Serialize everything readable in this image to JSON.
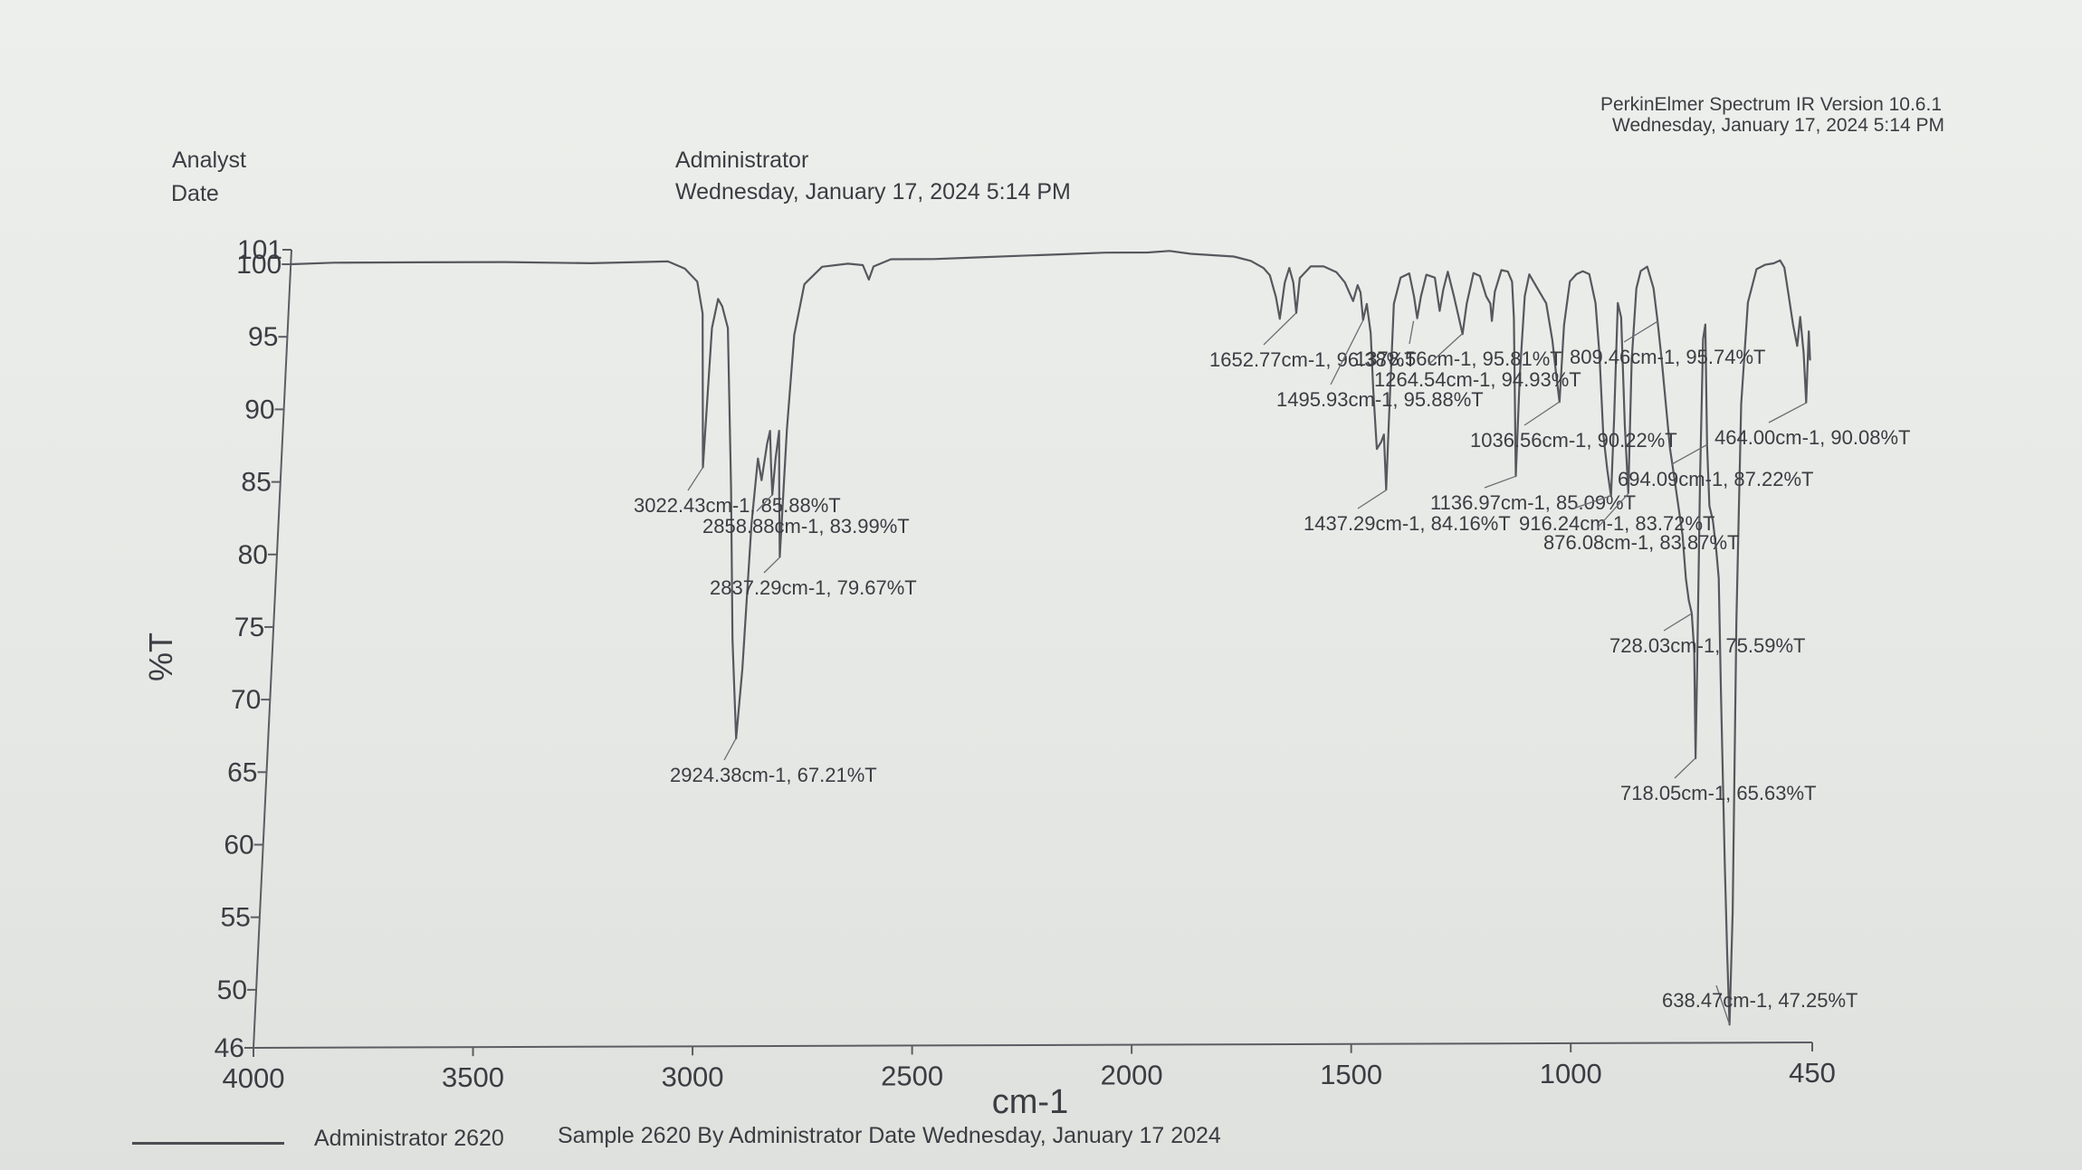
{
  "header": {
    "analyst_label": "Analyst",
    "date_label": "Date",
    "analyst_value": "Administrator",
    "date_value": "Wednesday, January 17, 2024 5:14 PM",
    "software": "PerkinElmer Spectrum IR Version 10.6.1",
    "software_date": "Wednesday, January 17, 2024 5:14 PM"
  },
  "legend": {
    "name": "Administrator 2620",
    "description": "Sample 2620 By Administrator Date Wednesday, January 17 2024"
  },
  "chart_data": {
    "type": "line",
    "title": "",
    "xlabel": "cm-1",
    "ylabel": "%T",
    "xlim": [
      4000,
      450
    ],
    "ylim": [
      46,
      101
    ],
    "x_reversed": true,
    "x_ticks": [
      4000,
      3500,
      3000,
      2500,
      2000,
      1500,
      1000,
      450
    ],
    "y_ticks": [
      46,
      50,
      55,
      60,
      65,
      70,
      75,
      80,
      85,
      90,
      95,
      100,
      101
    ],
    "grid": false,
    "series": [
      {
        "name": "Administrator 2620",
        "color": "#55585d",
        "points": [
          [
            4000,
            100
          ],
          [
            3900,
            100.1
          ],
          [
            3700,
            100.1
          ],
          [
            3500,
            100.1
          ],
          [
            3300,
            100.0
          ],
          [
            3120,
            100.1
          ],
          [
            3080,
            99.6
          ],
          [
            3050,
            98.7
          ],
          [
            3035,
            96.5
          ],
          [
            3022,
            85.9
          ],
          [
            3012,
            95.5
          ],
          [
            3000,
            97.5
          ],
          [
            2990,
            97.0
          ],
          [
            2975,
            95.5
          ],
          [
            2955,
            84.5
          ],
          [
            2940,
            74.0
          ],
          [
            2924,
            67.2
          ],
          [
            2915,
            72.0
          ],
          [
            2905,
            82.0
          ],
          [
            2895,
            86.5
          ],
          [
            2885,
            85.0
          ],
          [
            2875,
            87.5
          ],
          [
            2869,
            88.4
          ],
          [
            2864,
            86.0
          ],
          [
            2859,
            84.0
          ],
          [
            2854,
            86.5
          ],
          [
            2848,
            88.4
          ],
          [
            2843,
            84.0
          ],
          [
            2837,
            79.7
          ],
          [
            2830,
            88.5
          ],
          [
            2820,
            95.0
          ],
          [
            2800,
            98.5
          ],
          [
            2760,
            99.7
          ],
          [
            2700,
            99.9
          ],
          [
            2665,
            99.8
          ],
          [
            2650,
            98.8
          ],
          [
            2640,
            99.7
          ],
          [
            2600,
            100.2
          ],
          [
            2500,
            100.2
          ],
          [
            2400,
            100.3
          ],
          [
            2300,
            100.4
          ],
          [
            2200,
            100.5
          ],
          [
            2100,
            100.6
          ],
          [
            2000,
            100.6
          ],
          [
            1950,
            100.7
          ],
          [
            1900,
            100.5
          ],
          [
            1850,
            100.4
          ],
          [
            1800,
            100.3
          ],
          [
            1760,
            100.0
          ],
          [
            1730,
            99.5
          ],
          [
            1715,
            99.0
          ],
          [
            1700,
            97.5
          ],
          [
            1690,
            96.0
          ],
          [
            1680,
            98.5
          ],
          [
            1670,
            99.5
          ],
          [
            1660,
            98.5
          ],
          [
            1652,
            96.4
          ],
          [
            1645,
            98.8
          ],
          [
            1620,
            99.6
          ],
          [
            1590,
            99.6
          ],
          [
            1560,
            99.2
          ],
          [
            1540,
            98.5
          ],
          [
            1520,
            97.2
          ],
          [
            1510,
            98.3
          ],
          [
            1503,
            97.8
          ],
          [
            1496,
            95.9
          ],
          [
            1488,
            97.0
          ],
          [
            1478,
            95.0
          ],
          [
            1470,
            91.0
          ],
          [
            1460,
            87.0
          ],
          [
            1450,
            87.5
          ],
          [
            1444,
            88.0
          ],
          [
            1437,
            84.2
          ],
          [
            1432,
            90.0
          ],
          [
            1425,
            97.0
          ],
          [
            1410,
            98.8
          ],
          [
            1390,
            99.1
          ],
          [
            1378,
            97.5
          ],
          [
            1370,
            96.0
          ],
          [
            1362,
            97.5
          ],
          [
            1350,
            99.0
          ],
          [
            1330,
            98.8
          ],
          [
            1318,
            96.5
          ],
          [
            1310,
            98.0
          ],
          [
            1300,
            99.2
          ],
          [
            1285,
            97.5
          ],
          [
            1264,
            94.9
          ],
          [
            1255,
            97.0
          ],
          [
            1240,
            99.1
          ],
          [
            1225,
            98.9
          ],
          [
            1210,
            97.5
          ],
          [
            1200,
            97.0
          ],
          [
            1196,
            95.8
          ],
          [
            1190,
            97.8
          ],
          [
            1175,
            99.3
          ],
          [
            1160,
            99.2
          ],
          [
            1150,
            98.5
          ],
          [
            1145,
            96.0
          ],
          [
            1137,
            85.1
          ],
          [
            1130,
            92.0
          ],
          [
            1120,
            97.5
          ],
          [
            1110,
            99.0
          ],
          [
            1090,
            98.0
          ],
          [
            1070,
            97.0
          ],
          [
            1055,
            94.5
          ],
          [
            1045,
            92.0
          ],
          [
            1037,
            90.2
          ],
          [
            1028,
            95.5
          ],
          [
            1015,
            98.5
          ],
          [
            1000,
            99.0
          ],
          [
            985,
            99.2
          ],
          [
            970,
            99.0
          ],
          [
            955,
            97.0
          ],
          [
            945,
            93.5
          ],
          [
            935,
            88.0
          ],
          [
            925,
            85.5
          ],
          [
            916,
            83.7
          ],
          [
            910,
            89.0
          ],
          [
            903,
            97.0
          ],
          [
            895,
            96.0
          ],
          [
            885,
            88.5
          ],
          [
            876,
            83.9
          ],
          [
            870,
            93.0
          ],
          [
            860,
            98.0
          ],
          [
            850,
            99.2
          ],
          [
            835,
            99.5
          ],
          [
            820,
            98.0
          ],
          [
            810,
            95.7
          ],
          [
            800,
            93.0
          ],
          [
            790,
            90.0
          ],
          [
            780,
            87.0
          ],
          [
            770,
            85.0
          ],
          [
            760,
            83.0
          ],
          [
            750,
            81.0
          ],
          [
            742,
            78.0
          ],
          [
            735,
            76.5
          ],
          [
            728,
            75.6
          ],
          [
            722,
            73.0
          ],
          [
            718,
            65.6
          ],
          [
            715,
            72.0
          ],
          [
            710,
            85.0
          ],
          [
            704,
            94.5
          ],
          [
            699,
            95.5
          ],
          [
            694,
            87.2
          ],
          [
            688,
            83.0
          ],
          [
            680,
            82.0
          ],
          [
            672,
            80.0
          ],
          [
            666,
            78.0
          ],
          [
            660,
            70.0
          ],
          [
            650,
            58.0
          ],
          [
            644,
            52.0
          ],
          [
            638.5,
            47.25
          ],
          [
            632,
            55.0
          ],
          [
            625,
            75.0
          ],
          [
            615,
            90.0
          ],
          [
            600,
            97.0
          ],
          [
            580,
            99.3
          ],
          [
            560,
            99.6
          ],
          [
            540,
            99.7
          ],
          [
            525,
            99.9
          ],
          [
            515,
            99.4
          ],
          [
            505,
            97.5
          ],
          [
            495,
            95.5
          ],
          [
            485,
            94.0
          ],
          [
            478,
            96.0
          ],
          [
            470,
            93.5
          ],
          [
            464,
            90.1
          ],
          [
            458,
            95.0
          ],
          [
            455,
            93.0
          ]
        ]
      }
    ],
    "annotations": [
      {
        "text": "3022.43cm-1, 85.88%T",
        "x": 3022.43,
        "y": 85.88
      },
      {
        "text": "2858.88cm-1, 83.99%T",
        "x": 2858.88,
        "y": 83.99
      },
      {
        "text": "2837.29cm-1, 79.67%T",
        "x": 2837.29,
        "y": 79.67
      },
      {
        "text": "2924.38cm-1, 67.21%T",
        "x": 2924.38,
        "y": 67.21
      },
      {
        "text": "1652.77cm-1, 96.38%T",
        "x": 1652.77,
        "y": 96.38
      },
      {
        "text": "1495.93cm-1, 95.88%T",
        "x": 1495.93,
        "y": 95.88
      },
      {
        "text": "1378.56cm-1, 95.81%T",
        "x": 1378.56,
        "y": 95.81
      },
      {
        "text": "1264.54cm-1, 94.93%T",
        "x": 1264.54,
        "y": 94.93
      },
      {
        "text": "809.46cm-1, 95.74%T",
        "x": 809.46,
        "y": 95.74
      },
      {
        "text": "464.00cm-1, 90.08%T",
        "x": 464.0,
        "y": 90.08
      },
      {
        "text": "1036.56cm-1, 90.22%T",
        "x": 1036.56,
        "y": 90.22
      },
      {
        "text": "694.09cm-1, 87.22%T",
        "x": 694.09,
        "y": 87.22
      },
      {
        "text": "1136.97cm-1, 85.09%T",
        "x": 1136.97,
        "y": 85.09
      },
      {
        "text": "1437.29cm-1, 84.16%T",
        "x": 1437.29,
        "y": 84.16
      },
      {
        "text": "916.24cm-1, 83.72%T",
        "x": 916.24,
        "y": 83.72
      },
      {
        "text": "876.08cm-1, 83.87%T",
        "x": 876.08,
        "y": 83.87
      },
      {
        "text": "728.03cm-1, 75.59%T",
        "x": 728.03,
        "y": 75.59
      },
      {
        "text": "718.05cm-1, 65.63%T",
        "x": 718.05,
        "y": 65.63
      },
      {
        "text": "638.47cm-1, 47.25%T",
        "x": 638.47,
        "y": 47.25
      }
    ]
  }
}
